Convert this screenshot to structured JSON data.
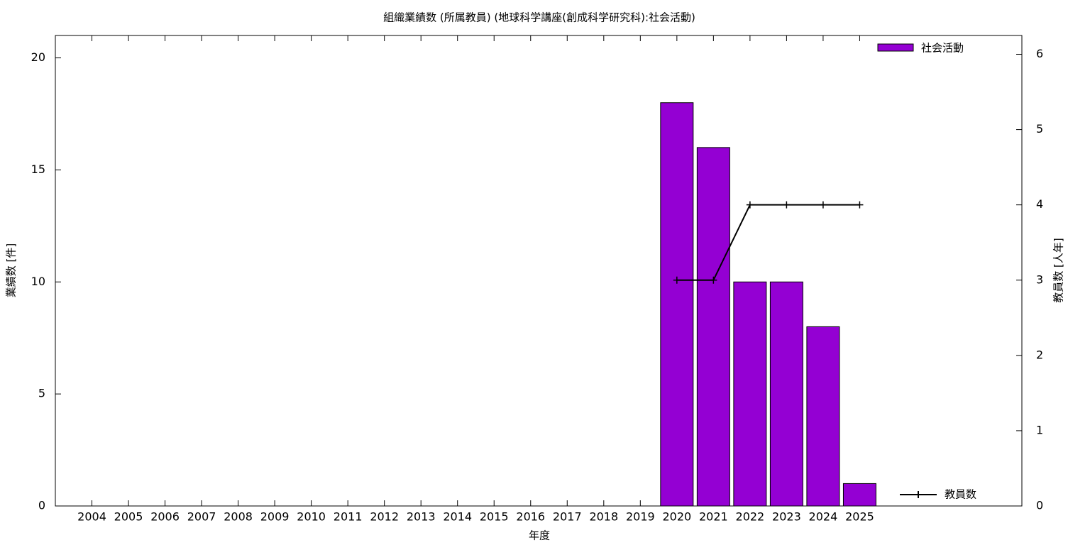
{
  "chart_data": {
    "type": "bar",
    "title": "組織業績数 (所属教員) (地球科学講座(創成科学研究科):社会活動)",
    "xlabel": "年度",
    "ylabel": "業績数 [件]",
    "y2label": "教員数 [人年]",
    "categories": [
      "2004",
      "2005",
      "2006",
      "2007",
      "2008",
      "2009",
      "2010",
      "2011",
      "2012",
      "2013",
      "2014",
      "2015",
      "2016",
      "2017",
      "2018",
      "2019",
      "2020",
      "2021",
      "2022",
      "2023",
      "2024",
      "2025"
    ],
    "series": [
      {
        "name": "社会活動",
        "type": "bar",
        "color": "#9400d3",
        "values": [
          0,
          0,
          0,
          0,
          0,
          0,
          0,
          0,
          0,
          0,
          0,
          0,
          0,
          0,
          0,
          0,
          18,
          16,
          10,
          10,
          8,
          1
        ]
      },
      {
        "name": "教員数",
        "type": "line",
        "axis": "y2",
        "color": "#000000",
        "values": [
          null,
          null,
          null,
          null,
          null,
          null,
          null,
          null,
          null,
          null,
          null,
          null,
          null,
          null,
          null,
          null,
          3,
          3,
          4,
          4,
          4,
          4
        ]
      }
    ],
    "ylim": [
      0,
      21
    ],
    "yticks": [
      0,
      5,
      10,
      15,
      20
    ],
    "y2lim": [
      0,
      6.25
    ],
    "y2ticks": [
      0,
      1,
      2,
      3,
      4,
      5,
      6
    ]
  }
}
